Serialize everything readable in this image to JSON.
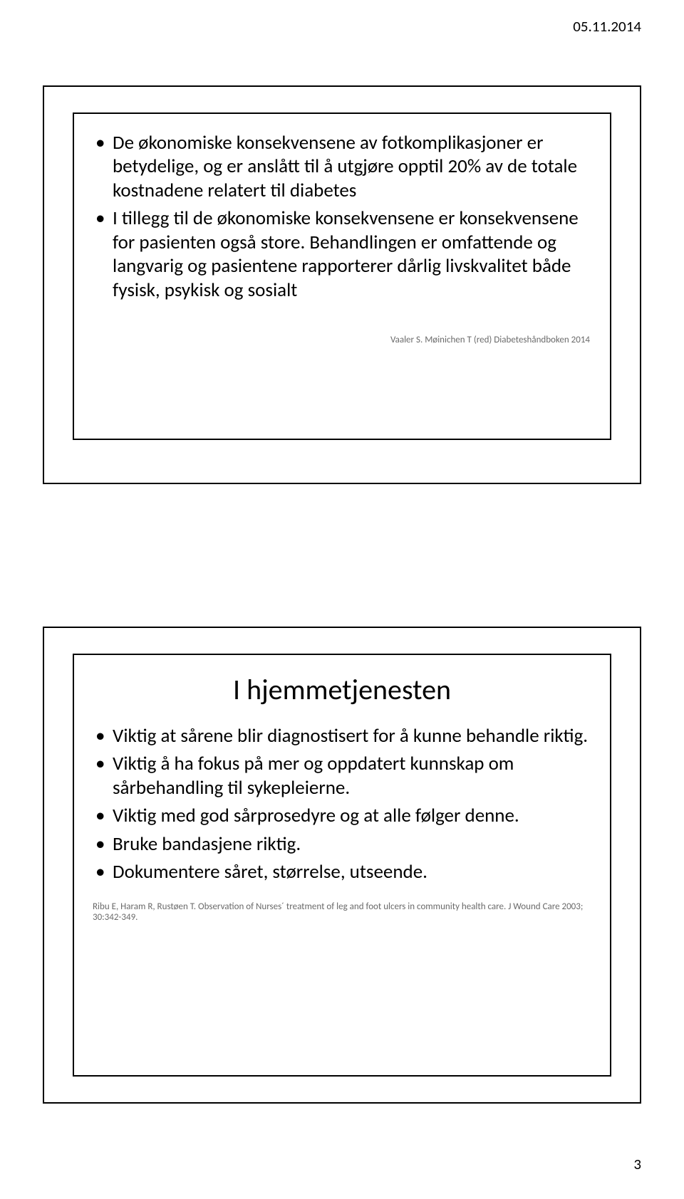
{
  "header": {
    "date": "05.11.2014"
  },
  "footer": {
    "page_number": "3"
  },
  "slide1": {
    "bullets": [
      "De økonomiske konsekvensene av fotkomplikasjoner er betydelige, og er anslått til å utgjøre opptil 20% av de totale kostnadene  relatert til diabetes",
      "I tillegg til de økonomiske konsekvensene er konsekvensene for pasienten også store. Behandlingen er omfattende og langvarig og pasientene rapporterer dårlig livskvalitet både fysisk, psykisk og sosialt"
    ],
    "citation": "Vaaler S. Møinichen T (red) Diabeteshåndboken 2014"
  },
  "slide2": {
    "title": "I hjemmetjenesten",
    "bullets": [
      "Viktig at sårene blir diagnostisert for å kunne behandle riktig.",
      "Viktig å ha fokus på mer og oppdatert kunnskap om sårbehandling til sykepleierne.",
      "Viktig med god sårprosedyre og at alle følger denne.",
      "Bruke bandasjene riktig.",
      "Dokumentere såret, størrelse, utseende."
    ],
    "citation": "Ribu E, Haram R, Rustøen T. Observation of Nurses´ treatment of leg and foot ulcers in community health care. J Wound Care 2003; 30:342-349."
  }
}
